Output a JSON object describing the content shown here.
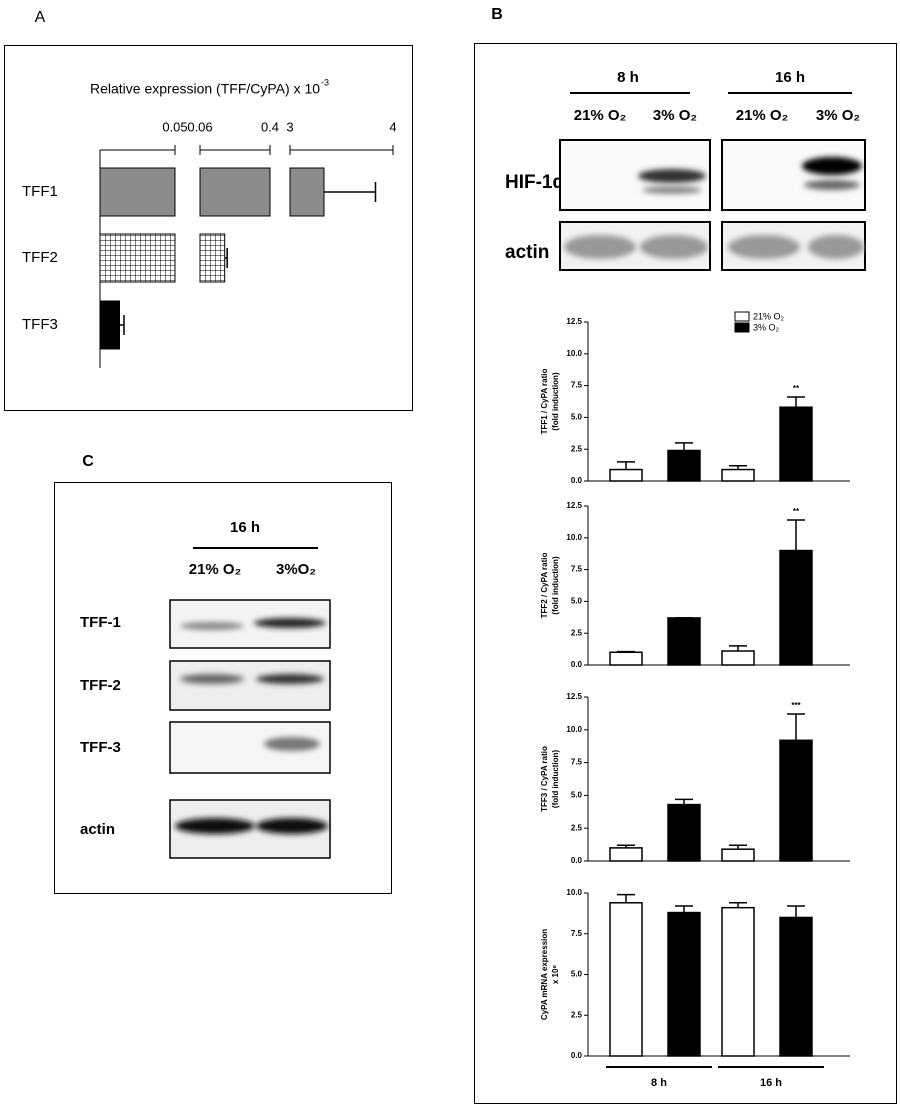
{
  "panel_labels": [
    "A",
    "B",
    "C"
  ],
  "blot_b": {
    "times": [
      "8 h",
      "16 h"
    ],
    "lanes": [
      "21% O₂",
      "3% O₂",
      "21% O₂",
      "3% O₂"
    ],
    "rows": [
      "HIF-1α",
      "actin"
    ]
  },
  "blot_c": {
    "time": "16 h",
    "lanes": [
      "21% O₂",
      "3%O₂"
    ],
    "rows": [
      "TFF-1",
      "TFF-2",
      "TFF-3",
      "actin"
    ]
  },
  "chart_data": [
    {
      "type": "broken-bar",
      "title": "Relative expression (TFF/CyPA) x 10",
      "title_exponent": "-3",
      "categories": [
        "TFF1",
        "TFF2",
        "TFF3"
      ],
      "values": [
        3.33,
        0.18,
        0.013
      ],
      "errors": [
        0.5,
        0.012,
        0.003
      ],
      "fills": [
        "#8c8c8c",
        "hatch",
        "#000000"
      ],
      "segments": [
        [
          0,
          0.05
        ],
        [
          0.06,
          0.4
        ],
        [
          3,
          4
        ]
      ],
      "xticks": [
        0.05,
        0.06,
        0.4,
        3,
        4
      ]
    },
    {
      "type": "bar",
      "ylabel": [
        "TFF1 / CyPA ratio",
        "(fold induction)"
      ],
      "categories": [
        null,
        null
      ],
      "ylim": [
        0,
        12.5
      ],
      "yticks": [
        {
          "value": 0,
          "label": "0.0"
        },
        2.5,
        {
          "value": 5,
          "label": "5.0"
        },
        7.5,
        {
          "value": 10,
          "label": "10.0"
        },
        12.5
      ],
      "legend": true,
      "legend_position": "top-right",
      "series": [
        {
          "name": "21% O₂",
          "color": "#ffffff",
          "values": [
            0.9,
            0.9
          ],
          "errors": [
            0.6,
            0.3
          ]
        },
        {
          "name": "3% O₂",
          "color": "#000000",
          "values": [
            2.4,
            5.8
          ],
          "errors": [
            0.6,
            0.8
          ],
          "annotations": [
            null,
            "**"
          ]
        }
      ]
    },
    {
      "type": "bar",
      "ylabel": [
        "TFF2 / CyPA ratio",
        "(fold induction)"
      ],
      "categories": [
        null,
        null
      ],
      "ylim": [
        0,
        12.5
      ],
      "yticks": [
        {
          "value": 0,
          "label": "0.0"
        },
        2.5,
        {
          "value": 5,
          "label": "5.0"
        },
        7.5,
        {
          "value": 10,
          "label": "10.0"
        },
        12.5
      ],
      "series": [
        {
          "name": "21% O₂",
          "color": "#ffffff",
          "values": [
            1.0,
            1.1
          ],
          "errors": [
            0.05,
            0.4
          ]
        },
        {
          "name": "3% O₂",
          "color": "#000000",
          "values": [
            3.7,
            9.0
          ],
          "errors": [
            0,
            2.4
          ],
          "annotations": [
            null,
            "**"
          ]
        }
      ]
    },
    {
      "type": "bar",
      "ylabel": [
        "TFF3 / CyPA ratio",
        "(fold induction)"
      ],
      "categories": [
        null,
        null
      ],
      "ylim": [
        0,
        12.5
      ],
      "yticks": [
        {
          "value": 0,
          "label": "0.0"
        },
        2.5,
        {
          "value": 5,
          "label": "5.0"
        },
        7.5,
        {
          "value": 10,
          "label": "10.0"
        },
        12.5
      ],
      "series": [
        {
          "name": "21% O₂",
          "color": "#ffffff",
          "values": [
            1.0,
            0.9
          ],
          "errors": [
            0.2,
            0.3
          ]
        },
        {
          "name": "3% O₂",
          "color": "#000000",
          "values": [
            4.3,
            9.2
          ],
          "errors": [
            0.4,
            2.0
          ],
          "annotations": [
            null,
            "***"
          ]
        }
      ]
    },
    {
      "type": "bar",
      "ylabel": [
        "CyPA mRNA expression",
        "x 10⁸"
      ],
      "categories": [
        "8 h",
        "16 h"
      ],
      "ylim": [
        0,
        10
      ],
      "yticks": [
        {
          "value": 0,
          "label": "0.0"
        },
        2.5,
        {
          "value": 5,
          "label": "5.0"
        },
        7.5,
        {
          "value": 10,
          "label": "10.0"
        }
      ],
      "series": [
        {
          "name": "21% O₂",
          "color": "#ffffff",
          "values": [
            9.4,
            9.1
          ],
          "errors": [
            0.5,
            0.3
          ]
        },
        {
          "name": "3% O₂",
          "color": "#000000",
          "values": [
            8.8,
            8.5
          ],
          "errors": [
            0.4,
            0.7
          ]
        }
      ]
    }
  ]
}
